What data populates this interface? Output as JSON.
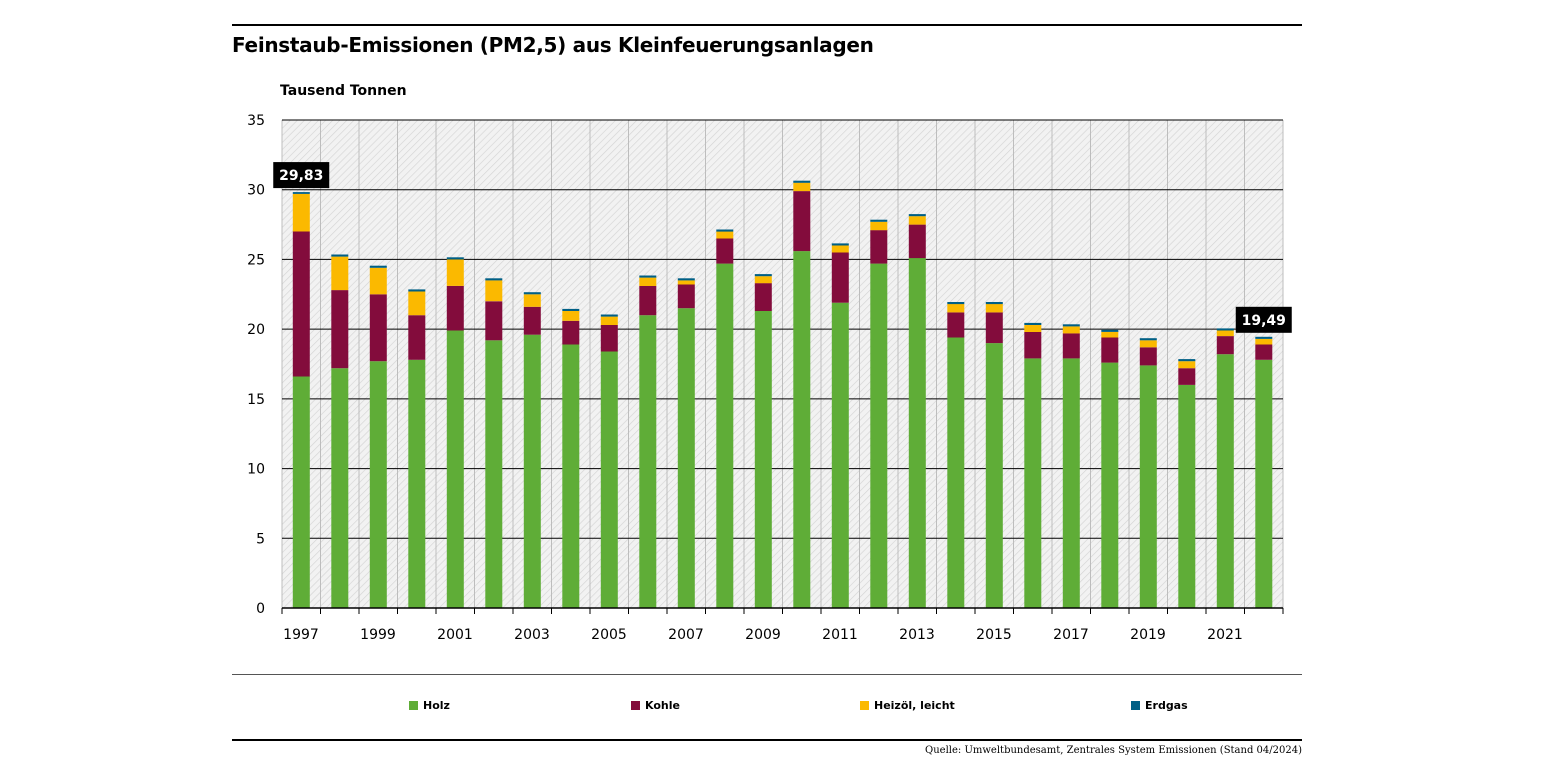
{
  "chart_data": {
    "type": "bar",
    "stacked": true,
    "title": "Feinstaub-Emissionen (PM2,5) aus Kleinfeuerungsanlagen",
    "ylabel": "Tausend Tonnen",
    "ylim": [
      0,
      35
    ],
    "yticks": [
      "0",
      "5",
      "10",
      "15",
      "20",
      "25",
      "30",
      "35"
    ],
    "grid": true,
    "legend_position": "bottom",
    "categories": [
      1997,
      1998,
      1999,
      2000,
      2001,
      2002,
      2003,
      2004,
      2005,
      2006,
      2007,
      2008,
      2009,
      2010,
      2011,
      2012,
      2013,
      2014,
      2015,
      2016,
      2017,
      2018,
      2019,
      2020,
      2021,
      2022
    ],
    "xtick_labels": [
      "1997",
      "",
      "1999",
      "",
      "2001",
      "",
      "2003",
      "",
      "2005",
      "",
      "2007",
      "",
      "2009",
      "",
      "2011",
      "",
      "2013",
      "",
      "2015",
      "",
      "2017",
      "",
      "2019",
      "",
      "2021",
      ""
    ],
    "series": [
      {
        "name": "Holz",
        "color": "#5fad37",
        "values": [
          16.6,
          17.2,
          17.7,
          17.8,
          19.9,
          19.2,
          19.6,
          18.9,
          18.4,
          21.0,
          21.5,
          24.7,
          21.3,
          25.6,
          21.9,
          24.7,
          25.1,
          19.4,
          19.0,
          17.9,
          17.9,
          17.6,
          17.4,
          16.0,
          18.2,
          17.8
        ]
      },
      {
        "name": "Kohle",
        "color": "#830c3c",
        "values": [
          10.4,
          5.6,
          4.8,
          3.2,
          3.2,
          2.8,
          2.0,
          1.7,
          1.9,
          2.1,
          1.7,
          1.8,
          2.0,
          4.3,
          3.6,
          2.4,
          2.4,
          1.8,
          2.2,
          1.9,
          1.8,
          1.8,
          1.3,
          1.2,
          1.3,
          1.1
        ]
      },
      {
        "name": "Heizöl, leicht",
        "color": "#fbb900",
        "values": [
          2.7,
          2.4,
          1.9,
          1.7,
          1.9,
          1.5,
          0.9,
          0.7,
          0.6,
          0.6,
          0.3,
          0.5,
          0.5,
          0.6,
          0.5,
          0.6,
          0.6,
          0.6,
          0.6,
          0.5,
          0.5,
          0.4,
          0.5,
          0.5,
          0.4,
          0.4
        ]
      },
      {
        "name": "Erdgas",
        "color": "#005f85",
        "values": [
          0.13,
          0.15,
          0.15,
          0.15,
          0.15,
          0.15,
          0.15,
          0.15,
          0.15,
          0.15,
          0.15,
          0.15,
          0.15,
          0.15,
          0.15,
          0.15,
          0.15,
          0.15,
          0.15,
          0.15,
          0.15,
          0.15,
          0.15,
          0.15,
          0.15,
          0.15
        ]
      }
    ],
    "annotations": [
      {
        "category": 1997,
        "text": "29,83"
      },
      {
        "category": 2022,
        "text": "19,49"
      }
    ]
  },
  "source": "Quelle: Umweltbundesamt, Zentrales System Emissionen (Stand 04/2024)"
}
